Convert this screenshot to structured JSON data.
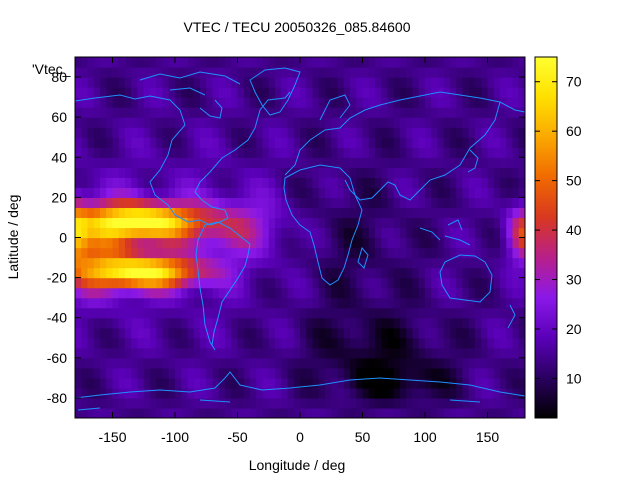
{
  "chart_data": {
    "type": "heatmap",
    "title": "VTEC / TECU 20050326_085.84600",
    "xlabel": "Longitude / deg",
    "ylabel": "Latitude / deg",
    "key_label": "'Vtec_",
    "xlim": [
      -180,
      180
    ],
    "ylim": [
      -90,
      90
    ],
    "x_ticks": [
      -150,
      -100,
      -50,
      0,
      50,
      100,
      150
    ],
    "y_ticks": [
      -80,
      -60,
      -40,
      -20,
      0,
      20,
      40,
      60,
      80
    ],
    "colorbar": {
      "range": [
        2,
        75
      ],
      "ticks": [
        10,
        20,
        30,
        40,
        50,
        60,
        70
      ],
      "palette": [
        "#000000",
        "#2a0060",
        "#5a00b8",
        "#8a18e8",
        "#b8208a",
        "#d83820",
        "#f06a00",
        "#faa800",
        "#ffe000",
        "#ffff30"
      ]
    },
    "grid": false,
    "overlay": "coastlines",
    "coastline_color": "#1e90ff",
    "field_features": [
      {
        "region": "equatorial anomaly crest north",
        "lon": -120,
        "lat": 8,
        "vtec": 73
      },
      {
        "region": "equatorial anomaly crest south",
        "lon": -125,
        "lat": -17,
        "vtec": 72
      },
      {
        "region": "dateline east edge",
        "lon": 172,
        "lat": 2,
        "vtec": 45
      },
      {
        "region": "night side minimum",
        "lon": 75,
        "lat": -75,
        "vtec": 3
      },
      {
        "region": "background mid-latitude",
        "lon": 30,
        "lat": 30,
        "vtec": 14
      }
    ]
  }
}
